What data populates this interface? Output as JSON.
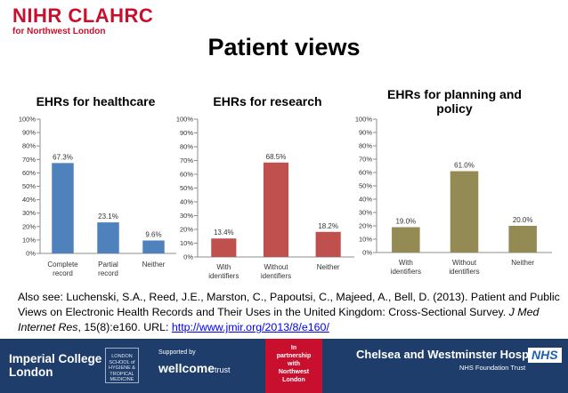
{
  "header": {
    "logo_main": "NIHR CLAHRC",
    "logo_sub": "for Northwest London",
    "title": "Patient views"
  },
  "chart_data": [
    {
      "type": "bar",
      "title": "EHRs for healthcare",
      "categories": [
        "Complete record",
        "Partial record",
        "Neither"
      ],
      "values": [
        67.3,
        23.1,
        9.6
      ],
      "data_labels": [
        "67.3%",
        "23.1%",
        "9.6%"
      ],
      "ylim": [
        0,
        100
      ],
      "yticks": [
        "0%",
        "10%",
        "20%",
        "30%",
        "40%",
        "50%",
        "60%",
        "70%",
        "80%",
        "90%",
        "100%"
      ],
      "grid": false,
      "legend": "none",
      "color": "#4f81bd"
    },
    {
      "type": "bar",
      "title": "EHRs for research",
      "categories": [
        "With identifiers",
        "Without identifiers",
        "Neither"
      ],
      "values": [
        13.4,
        68.5,
        18.2
      ],
      "data_labels": [
        "13.4%",
        "68.5%",
        "18.2%"
      ],
      "ylim": [
        0,
        100
      ],
      "yticks": [
        "0%",
        "10%",
        "20%",
        "30%",
        "40%",
        "50%",
        "60%",
        "70%",
        "80%",
        "90%",
        "100%"
      ],
      "grid": false,
      "legend": "none",
      "color": "#c0504d"
    },
    {
      "type": "bar",
      "title": "EHRs for planning and policy",
      "categories": [
        "With identifiers",
        "Without identifiers",
        "Neither"
      ],
      "values": [
        19.0,
        61.0,
        20.0
      ],
      "data_labels": [
        "19.0%",
        "61.0%",
        "20.0%"
      ],
      "ylim": [
        0,
        100
      ],
      "yticks": [
        "0%",
        "10%",
        "20%",
        "30%",
        "40%",
        "50%",
        "60%",
        "70%",
        "80%",
        "90%",
        "100%"
      ],
      "grid": false,
      "legend": "none",
      "color": "#948a54"
    }
  ],
  "citation": {
    "text": "Also see: Luchenski, S.A., Reed, J.E., Marston, C., Papoutsi, C., Majeed, A., Bell, D. (2013). Patient and Public Views on Electronic Health Records and Their Uses in the United Kingdom: Cross-Sectional Survey. ",
    "journal": "J Med Internet Res",
    "details": ", 15(8):e160. URL: ",
    "url": "http://www.jmir.org/2013/8/e160/"
  },
  "footer": {
    "left_line1": "Imperial College",
    "left_line2": "London",
    "crest_text": "LONDON SCHOOL of HYGIENE & TROPICAL MEDICINE",
    "supported_by": "Supported by",
    "wellcome": "wellcome",
    "wellcome_trust": "trust",
    "partner_line1": "In",
    "partner_line2": "partnership",
    "partner_line3": "with",
    "partner_line4": "Northwest",
    "partner_line5": "London",
    "right_name": "Chelsea and Westminster Hospital",
    "nhs": "NHS",
    "trust": "NHS Foundation Trust"
  }
}
